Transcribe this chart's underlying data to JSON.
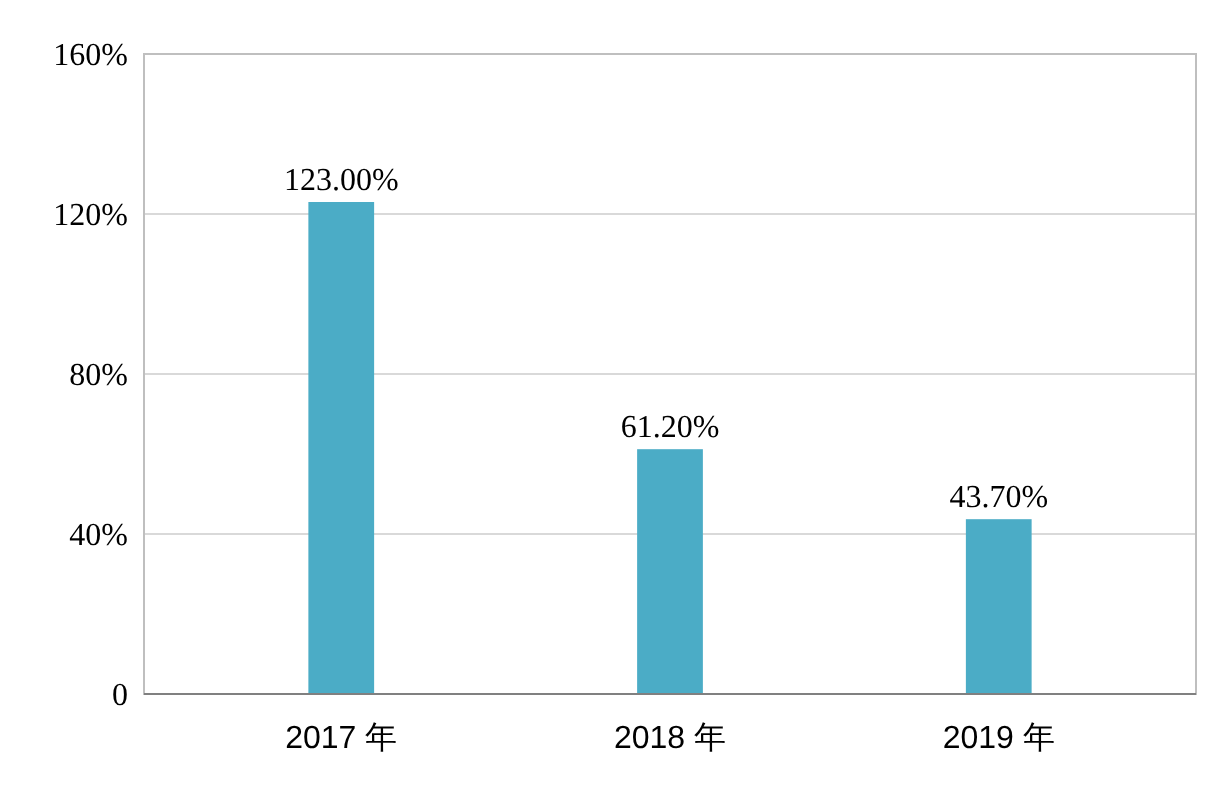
{
  "chart_data": {
    "type": "bar",
    "categories": [
      "2017 年",
      "2018 年",
      "2019 年"
    ],
    "values": [
      123,
      61.2,
      43.7
    ],
    "value_labels": [
      "123.00%",
      "61.20%",
      "43.70%"
    ],
    "color": "#4bacc6",
    "ylim": [
      0,
      160
    ],
    "yticks": [
      0,
      {
        "value": 40,
        "label": "40%"
      },
      {
        "value": 80,
        "label": "80%"
      },
      {
        "value": 120,
        "label": "120%"
      },
      {
        "value": 160,
        "label": "160%"
      }
    ],
    "grid": "y"
  }
}
